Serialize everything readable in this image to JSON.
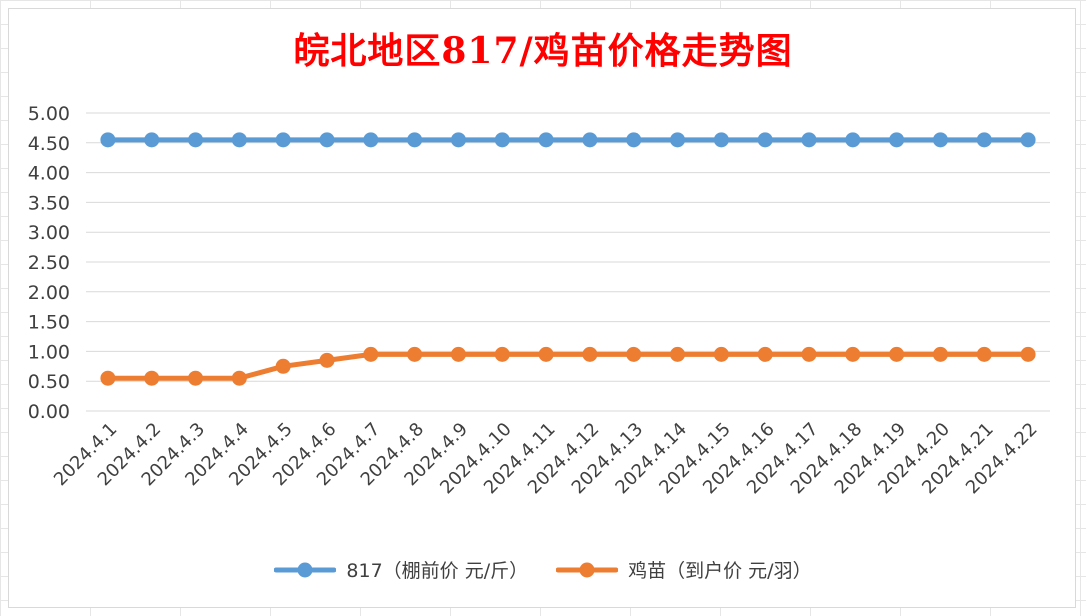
{
  "chart_data": {
    "type": "line",
    "title": "皖北地区817/鸡苗价格走势图",
    "categories": [
      "2024.4.1",
      "2024.4.2",
      "2024.4.3",
      "2024.4.4",
      "2024.4.5",
      "2024.4.6",
      "2024.4.7",
      "2024.4.8",
      "2024.4.9",
      "2024.4.10",
      "2024.4.11",
      "2024.4.12",
      "2024.4.13",
      "2024.4.14",
      "2024.4.15",
      "2024.4.16",
      "2024.4.17",
      "2024.4.18",
      "2024.4.19",
      "2024.4.20",
      "2024.4.21",
      "2024.4.22"
    ],
    "y_ticks": [
      "0.00",
      "0.50",
      "1.00",
      "1.50",
      "2.00",
      "2.50",
      "3.00",
      "3.50",
      "4.00",
      "4.50",
      "5.00"
    ],
    "ylim": [
      0,
      5
    ],
    "grid": true,
    "legend_position": "bottom",
    "series": [
      {
        "name": "817（棚前价 元/斤）",
        "color": "#5b9bd5",
        "values": [
          4.55,
          4.55,
          4.55,
          4.55,
          4.55,
          4.55,
          4.55,
          4.55,
          4.55,
          4.55,
          4.55,
          4.55,
          4.55,
          4.55,
          4.55,
          4.55,
          4.55,
          4.55,
          4.55,
          4.55,
          4.55,
          4.55
        ]
      },
      {
        "name": "鸡苗（到户价 元/羽）",
        "color": "#ed7d31",
        "values": [
          0.55,
          0.55,
          0.55,
          0.55,
          0.75,
          0.85,
          0.95,
          0.95,
          0.95,
          0.95,
          0.95,
          0.95,
          0.95,
          0.95,
          0.95,
          0.95,
          0.95,
          0.95,
          0.95,
          0.95,
          0.95,
          0.95
        ]
      }
    ]
  }
}
